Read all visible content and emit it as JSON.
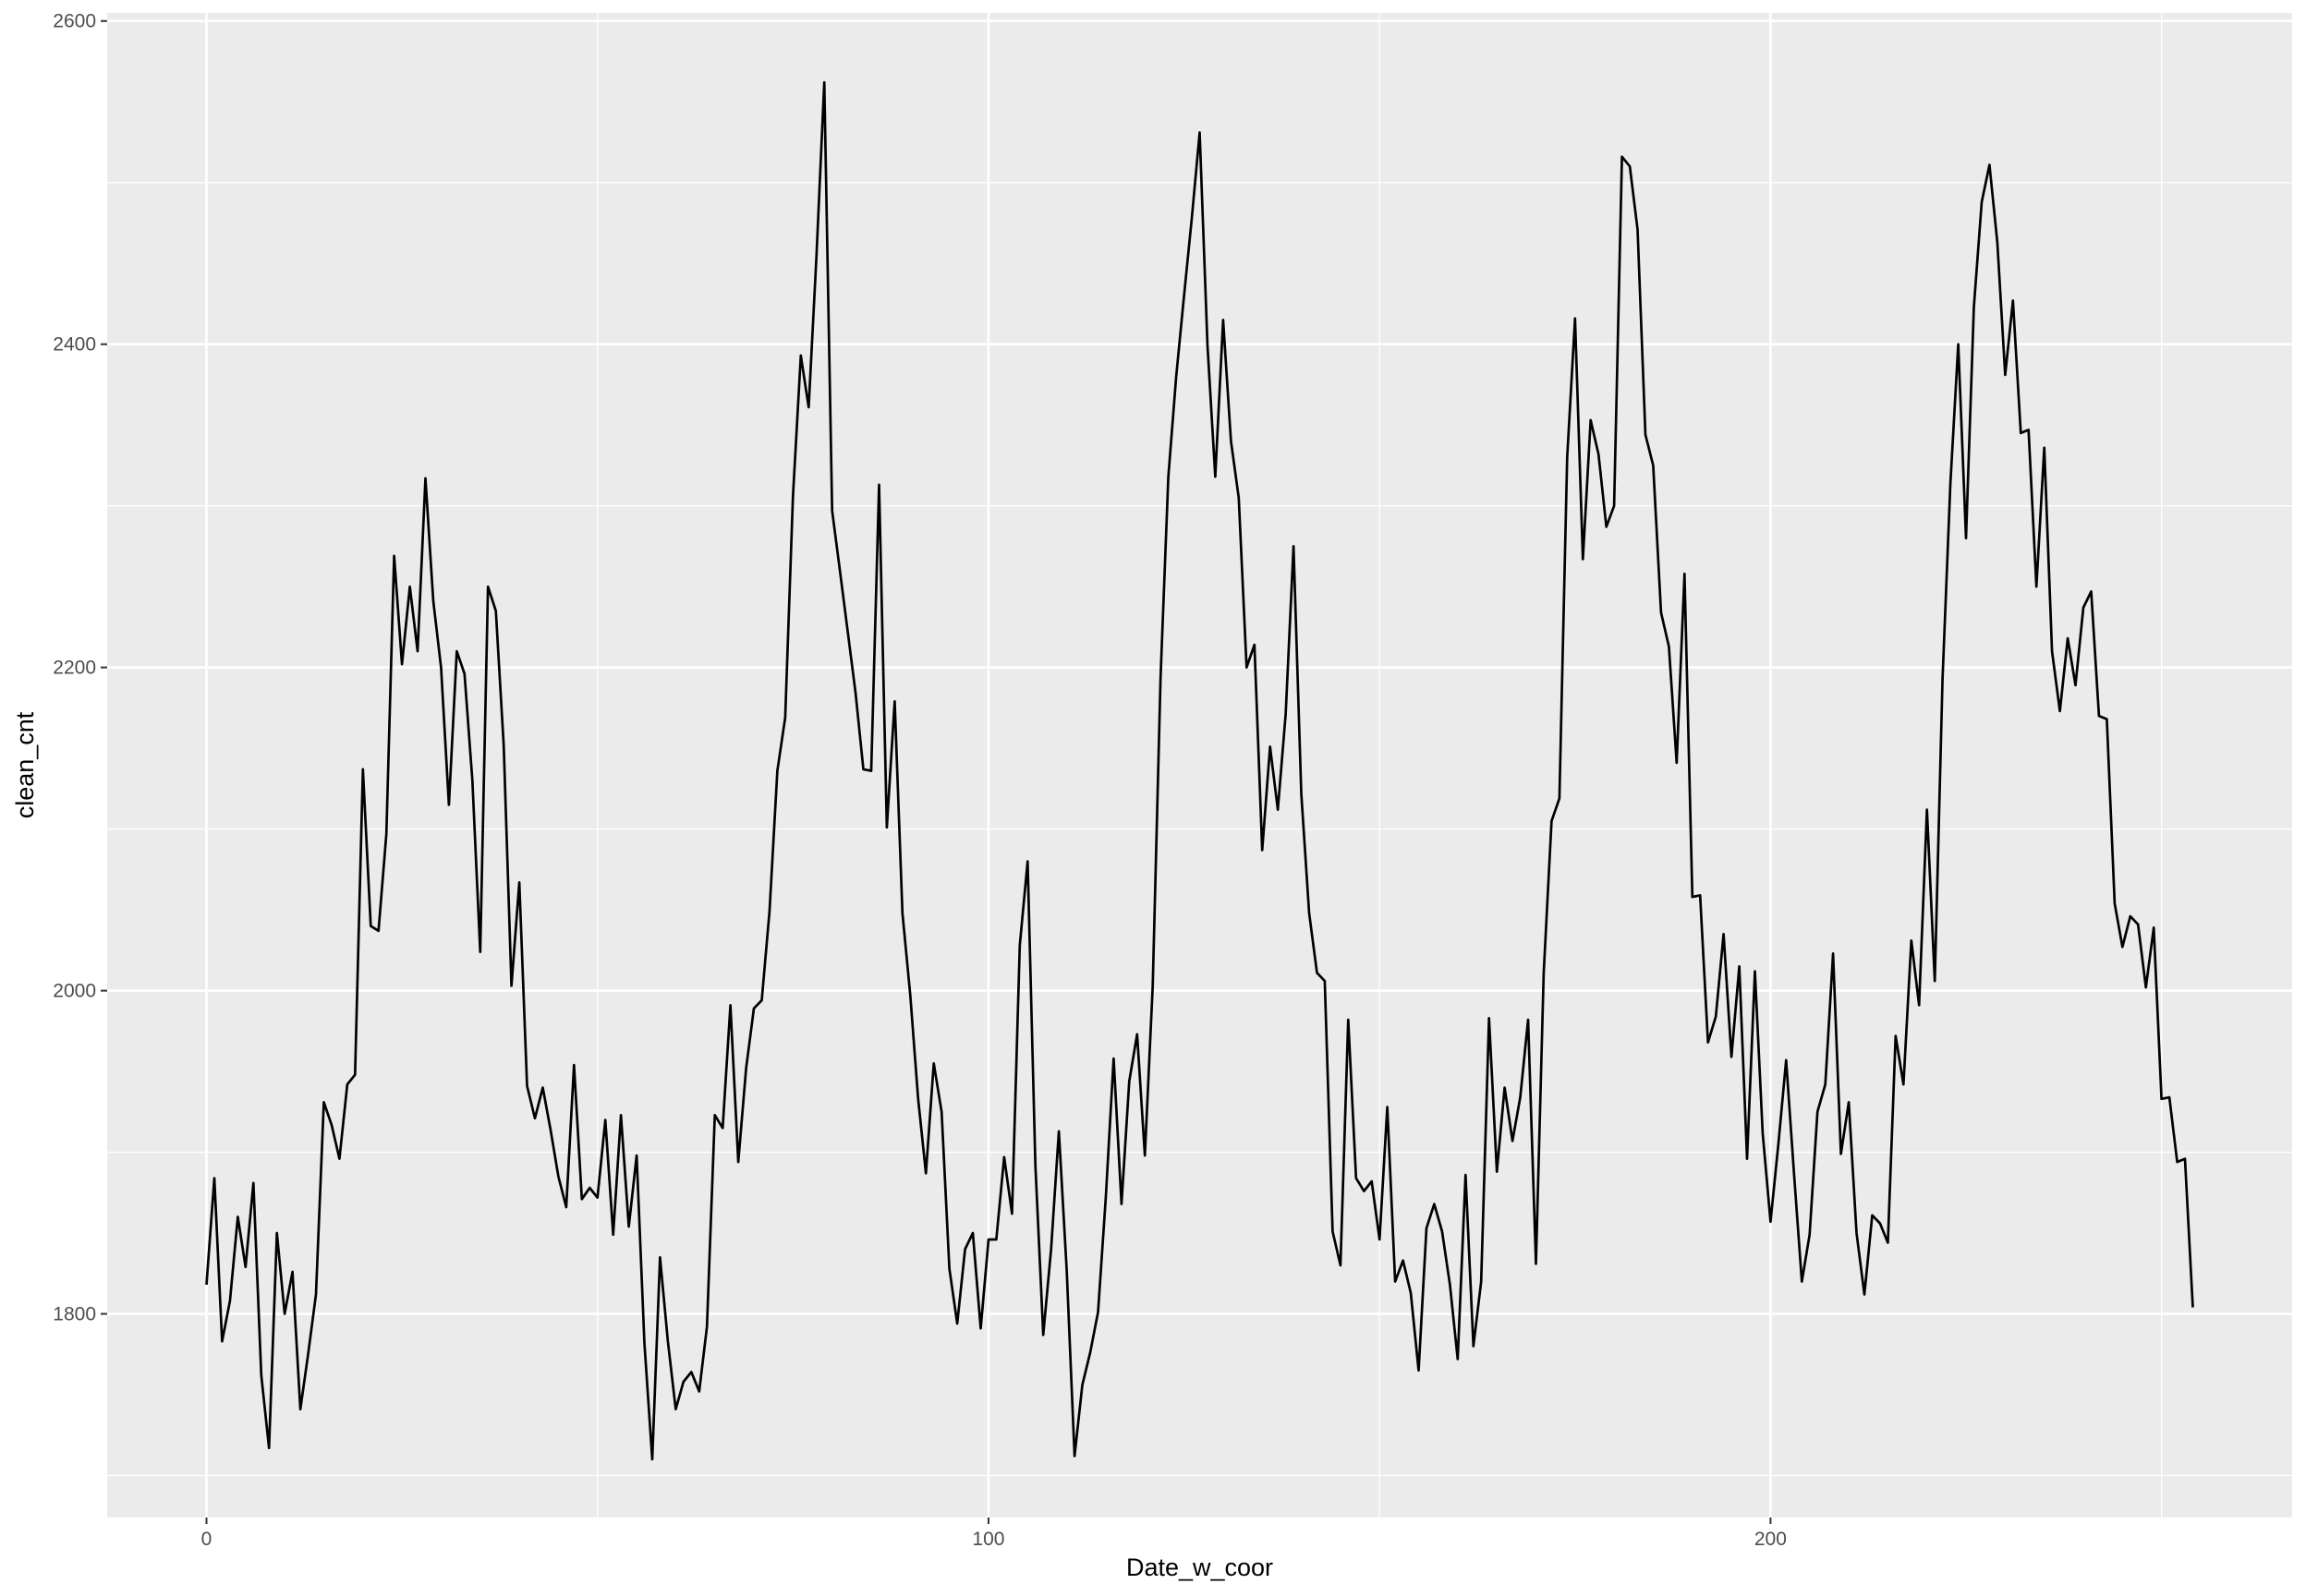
{
  "chart_data": {
    "type": "line",
    "title": "",
    "xlabel": "Date_w_coor",
    "ylabel": "clean_cnt",
    "xlim": [
      -12.7,
      266.7
    ],
    "ylim": [
      1674,
      2605
    ],
    "x_ticks": [
      0,
      100,
      200
    ],
    "x_tick_labels": [
      "0",
      "100",
      "200"
    ],
    "y_ticks": [
      1800,
      2000,
      2200,
      2400,
      2600
    ],
    "y_tick_labels": [
      "1800",
      "2000",
      "2200",
      "2400",
      "2600"
    ],
    "grid": true,
    "legend": "none",
    "colors": {
      "panel": "#ebebeb",
      "grid": "#ffffff",
      "line": "#000000",
      "tick_text": "#4d4d4d"
    },
    "series": [
      {
        "values": [
          1818,
          1884,
          1783,
          1808,
          1860,
          1829,
          1881,
          1762,
          1717,
          1850,
          1800,
          1826,
          1741,
          1775,
          1812,
          1931,
          1917,
          1896,
          1942,
          1948,
          2137,
          2040,
          2037,
          2097,
          2269,
          2202,
          2250,
          2210,
          2317,
          2241,
          2200,
          2115,
          2210,
          2196,
          2130,
          2024,
          2250,
          2235,
          2152,
          2003,
          2067,
          1941,
          1921,
          1940,
          1914,
          1885,
          1866,
          1954,
          1871,
          1878,
          1872,
          1920,
          1849,
          1923,
          1854,
          1898,
          1782,
          1710,
          1835,
          1783,
          1741,
          1758,
          1764,
          1752,
          1792,
          1923,
          1915,
          1991,
          1894,
          1952,
          1989,
          1994,
          2049,
          2136,
          2169,
          2306,
          2393,
          2361,
          2454,
          2562,
          2297,
          2260,
          2222,
          2184,
          2137,
          2136,
          2313,
          2101,
          2179,
          2048,
          1997,
          1933,
          1887,
          1955,
          1925,
          1828,
          1794,
          1840,
          1850,
          1791,
          1846,
          1846,
          1897,
          1862,
          2028,
          2080,
          1892,
          1787,
          1840,
          1913,
          1827,
          1712,
          1756,
          1776,
          1801,
          1872,
          1958,
          1868,
          1944,
          1973,
          1898,
          2003,
          2194,
          2318,
          2380,
          2430,
          2478,
          2531,
          2399,
          2318,
          2415,
          2340,
          2305,
          2200,
          2214,
          2087,
          2151,
          2112,
          2171,
          2275,
          2122,
          2048,
          2011,
          2006,
          1851,
          1830,
          1982,
          1884,
          1876,
          1882,
          1846,
          1928,
          1820,
          1833,
          1813,
          1765,
          1853,
          1868,
          1851,
          1818,
          1772,
          1886,
          1780,
          1820,
          1983,
          1888,
          1940,
          1907,
          1934,
          1982,
          1831,
          2011,
          2105,
          2119,
          2330,
          2416,
          2267,
          2353,
          2332,
          2287,
          2300,
          2516,
          2510,
          2471,
          2344,
          2325,
          2234,
          2213,
          2141,
          2258,
          2058,
          2059,
          1968,
          1984,
          2035,
          1959,
          2015,
          1896,
          2012,
          1912,
          1857,
          1905,
          1957,
          1887,
          1820,
          1849,
          1925,
          1942,
          2023,
          1899,
          1931,
          1850,
          1812,
          1861,
          1856,
          1844,
          1972,
          1942,
          2031,
          1991,
          2112,
          2006,
          2193,
          2314,
          2400,
          2280,
          2423,
          2488,
          2511,
          2463,
          2381,
          2427,
          2345,
          2347,
          2250,
          2336,
          2210,
          2173,
          2218,
          2189,
          2237,
          2247,
          2170,
          2168,
          2054,
          2027,
          2046,
          2041,
          2002,
          2039,
          1933,
          1934,
          1894,
          1896,
          1804
        ]
      }
    ]
  }
}
